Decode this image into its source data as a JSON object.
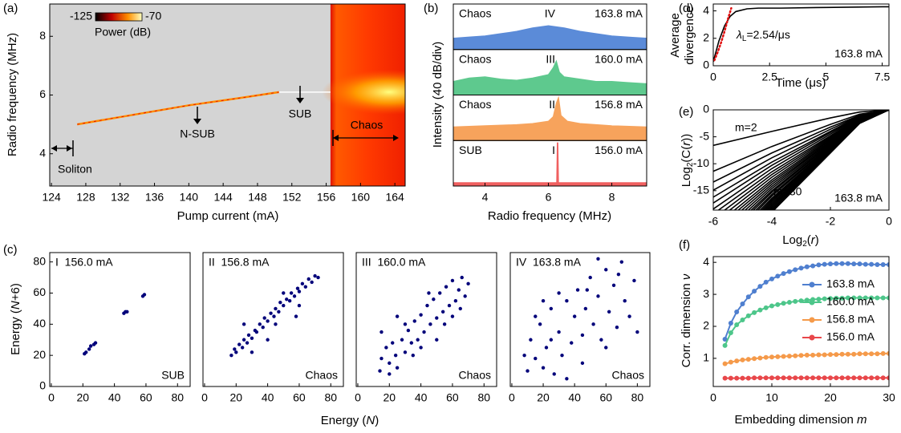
{
  "chart_data": [
    {
      "type": "heatmap",
      "panel": "(a)",
      "xlabel": "Pump current (mA)",
      "ylabel": "Radio frequency (MHz)",
      "xlim": [
        123.8,
        165.2
      ],
      "ylim": [
        2.9,
        9.1
      ],
      "xticks": [
        124,
        128,
        132,
        136,
        140,
        144,
        148,
        152,
        156,
        160,
        164
      ],
      "yticks": [
        4,
        6,
        8
      ],
      "colorbar_ticks": [
        -125,
        -70
      ],
      "colorbar_label": "Power (dB)",
      "annotations": [
        "N-SUB",
        "SUB",
        "Chaos",
        "Soliton"
      ],
      "x": [
        127,
        134,
        140,
        146,
        150.5
      ],
      "values": [
        5.0,
        5.35,
        5.65,
        5.9,
        6.1
      ],
      "color": "#ff8c00",
      "chaos_start": 156.5
    },
    {
      "type": "area",
      "panel": "(b)",
      "xlabel": "Radio frequency (MHz)",
      "ylabel": "Intensity (40 dB/div)",
      "xlim": [
        3,
        9.1
      ],
      "ylim": [
        0,
        40
      ],
      "xticks": [
        4,
        6,
        8
      ],
      "panels": [
        {
          "label": "Chaos",
          "numeral": "IV",
          "current": "163.8 mA",
          "color": "#5b8bd8",
          "x": [
            3,
            3.5,
            4,
            4.5,
            5,
            5.5,
            6,
            6.5,
            7,
            7.5,
            8,
            8.5,
            9.1
          ],
          "values": [
            10,
            11,
            12,
            14,
            16,
            19,
            21,
            19,
            16,
            14,
            12,
            11,
            10
          ]
        },
        {
          "label": "Chaos",
          "numeral": "III",
          "current": "160.0 mA",
          "color": "#5ec98e",
          "x": [
            3,
            3.5,
            4,
            4.5,
            5,
            5.5,
            6,
            6.15,
            6.25,
            6.35,
            6.5,
            7,
            7.5,
            8,
            8.5,
            9.1
          ],
          "values": [
            12,
            15,
            16,
            14,
            13,
            15,
            18,
            24,
            30,
            20,
            16,
            14,
            12,
            12,
            11,
            10
          ]
        },
        {
          "label": "Chaos",
          "numeral": "II",
          "current": "156.8 mA",
          "color": "#f7a35c",
          "x": [
            3,
            4,
            5,
            5.5,
            6,
            6.15,
            6.25,
            6.32,
            6.4,
            6.6,
            7,
            8,
            9.1
          ],
          "values": [
            12,
            13,
            14,
            15,
            17,
            21,
            33,
            38,
            22,
            17,
            15,
            13,
            12
          ]
        },
        {
          "label": "SUB",
          "numeral": "I",
          "current": "156.0 mA",
          "color": "#f06060",
          "x": [
            3,
            4,
            5,
            6,
            6.26,
            6.28,
            6.3,
            6.32,
            7,
            8,
            9.1
          ],
          "values": [
            3,
            3,
            3,
            3,
            3,
            38,
            38,
            3,
            3,
            3,
            3
          ]
        }
      ]
    },
    {
      "type": "scatter",
      "panel": "(c)",
      "xlabel": [
        "Energy (",
        "N",
        ")"
      ],
      "ylabel": [
        "Energy (",
        "N",
        "+6)"
      ],
      "label": "I  156.0 mA",
      "regime": "SUB",
      "color": "#00007a",
      "xlim": [
        -1,
        88
      ],
      "ylim": [
        0,
        86
      ],
      "xticks": [
        0,
        20,
        40,
        60,
        80
      ],
      "yticks": [
        0,
        20,
        40,
        60,
        80
      ],
      "x": [
        21,
        22,
        24,
        25,
        27,
        28,
        46,
        47,
        48,
        58,
        59
      ],
      "values": [
        21,
        22,
        24,
        26,
        27,
        28,
        47,
        48,
        48,
        58,
        59
      ]
    },
    {
      "type": "scatter",
      "label": "II  156.8 mA",
      "regime": "Chaos",
      "color": "#00007a",
      "xlim": [
        -1,
        88
      ],
      "ylim": [
        0,
        86
      ],
      "xticks": [
        0,
        20,
        40,
        60,
        80
      ],
      "x": [
        17,
        19,
        20,
        22,
        24,
        25,
        27,
        28,
        30,
        32,
        33,
        35,
        37,
        38,
        40,
        42,
        44,
        45,
        47,
        48,
        50,
        52,
        54,
        55,
        57,
        59,
        60,
        62,
        64,
        66,
        68,
        70,
        72,
        30,
        45,
        50,
        60,
        25,
        40,
        58
      ],
      "values": [
        20,
        24,
        22,
        27,
        25,
        30,
        28,
        33,
        31,
        36,
        35,
        40,
        38,
        44,
        42,
        47,
        45,
        50,
        48,
        54,
        52,
        56,
        55,
        60,
        58,
        63,
        61,
        66,
        64,
        69,
        67,
        71,
        70,
        22,
        40,
        60,
        52,
        40,
        30,
        45
      ]
    },
    {
      "type": "scatter",
      "label": "III  160.0 mA",
      "regime": "Chaos",
      "color": "#00007a",
      "xlim": [
        -1,
        88
      ],
      "ylim": [
        0,
        86
      ],
      "xticks": [
        0,
        20,
        40,
        60,
        80
      ],
      "x": [
        14,
        15,
        18,
        20,
        22,
        24,
        25,
        28,
        30,
        32,
        34,
        36,
        38,
        40,
        42,
        44,
        46,
        48,
        50,
        52,
        54,
        56,
        58,
        60,
        62,
        64,
        66,
        68,
        70,
        15,
        25,
        35,
        45,
        55,
        65,
        20,
        30,
        50,
        60,
        40
      ],
      "values": [
        10,
        18,
        25,
        15,
        28,
        20,
        12,
        30,
        22,
        36,
        28,
        42,
        30,
        46,
        35,
        52,
        40,
        56,
        44,
        60,
        48,
        64,
        52,
        68,
        55,
        62,
        70,
        58,
        66,
        35,
        45,
        20,
        60,
        40,
        50,
        8,
        40,
        30,
        45,
        25
      ]
    },
    {
      "type": "scatter",
      "label": "IV  163.8 mA",
      "regime": "Chaos",
      "color": "#00007a",
      "xlim": [
        -1,
        88
      ],
      "ylim": [
        0,
        86
      ],
      "xticks": [
        0,
        20,
        40,
        60,
        80
      ],
      "x": [
        8,
        10,
        12,
        15,
        18,
        20,
        22,
        25,
        27,
        30,
        32,
        35,
        38,
        40,
        42,
        45,
        47,
        50,
        52,
        55,
        57,
        60,
        62,
        65,
        67,
        70,
        72,
        75,
        78,
        80,
        30,
        20,
        45,
        60,
        68,
        35,
        55,
        15,
        48,
        25
      ],
      "values": [
        20,
        10,
        30,
        18,
        40,
        12,
        25,
        50,
        8,
        35,
        20,
        55,
        28,
        45,
        62,
        33,
        50,
        70,
        40,
        58,
        30,
        75,
        48,
        65,
        38,
        80,
        55,
        45,
        68,
        35,
        60,
        55,
        15,
        25,
        72,
        5,
        82,
        45,
        62,
        30
      ]
    },
    {
      "type": "line",
      "panel": "(d)",
      "xlabel": "Time (μs)",
      "ylabel": [
        "Average",
        "divergence"
      ],
      "annotation": [
        "λ",
        "L",
        "=2.54/μs"
      ],
      "current": "163.8 mA",
      "xlim": [
        0,
        7.8
      ],
      "ylim": [
        0,
        4.5
      ],
      "xticks": [
        0,
        2.5,
        5,
        7.5
      ],
      "yticks": [
        0,
        2,
        4
      ],
      "series": [
        {
          "color": "#000000",
          "x": [
            0,
            0.25,
            0.5,
            0.75,
            1,
            1.5,
            2,
            3,
            5,
            7.5,
            7.8
          ],
          "values": [
            0.3,
            1.8,
            2.9,
            3.6,
            3.95,
            4.15,
            4.2,
            4.2,
            4.25,
            4.3,
            4.3
          ]
        },
        {
          "color": "#e01010",
          "dotted": true,
          "x": [
            0.05,
            0.2,
            0.35,
            0.5,
            0.65,
            0.8
          ],
          "values": [
            0.4,
            1.0,
            1.7,
            2.5,
            3.4,
            4.2
          ]
        }
      ]
    },
    {
      "type": "line",
      "panel": "(e)",
      "xlabel": [
        "Log",
        "2",
        "(",
        "r",
        ")"
      ],
      "ylabel": [
        "Log",
        "2",
        "(C(",
        "r",
        "))"
      ],
      "annotations": [
        "m=2",
        "m=30"
      ],
      "current": "163.8 mA",
      "color": "#000000",
      "xlim": [
        -6,
        0
      ],
      "ylim": [
        -18.6,
        0
      ],
      "xticks": [
        -6,
        -4,
        -2,
        0
      ],
      "yticks": [
        0,
        -5,
        -10,
        -15
      ],
      "x": [
        -6,
        -4,
        -2,
        -1,
        0
      ],
      "series": [
        {
          "values": [
            -6.6,
            -4,
            -1.5,
            -0.4,
            0
          ]
        },
        {
          "values": [
            -11.4,
            -6.8,
            -2.7,
            -0.8,
            0
          ]
        },
        {
          "values": [
            -13.4,
            -8.0,
            -3.2,
            -1.0,
            0
          ]
        },
        {
          "values": [
            -14.9,
            -8.9,
            -3.6,
            -1.1,
            0
          ]
        },
        {
          "values": [
            -16.2,
            -9.7,
            -4.0,
            -1.2,
            0
          ]
        },
        {
          "values": [
            -17.3,
            -10.3,
            -4.2,
            -1.3,
            0
          ]
        },
        {
          "values": [
            -18.4,
            -10.9,
            -4.5,
            -1.4,
            0
          ]
        },
        {
          "values": [
            -19.3,
            -11.5,
            -4.8,
            -1.5,
            0
          ]
        },
        {
          "values": [
            -20.2,
            -12.0,
            -5.0,
            -1.5,
            0
          ]
        },
        {
          "values": [
            -21.0,
            -12.5,
            -5.2,
            -1.6,
            0
          ]
        },
        {
          "values": [
            -21.8,
            -13.0,
            -5.4,
            -1.7,
            0
          ]
        },
        {
          "values": [
            -22.5,
            -13.4,
            -5.6,
            -1.7,
            0
          ]
        },
        {
          "values": [
            -23.2,
            -13.8,
            -5.8,
            -1.8,
            0
          ]
        },
        {
          "values": [
            -23.9,
            -14.2,
            -5.9,
            -1.8,
            0
          ]
        },
        {
          "values": [
            -24.6,
            -14.6,
            -6.1,
            -1.9,
            0
          ]
        },
        {
          "values": [
            -25.2,
            -15.0,
            -6.3,
            -1.9,
            0
          ]
        },
        {
          "values": [
            -25.8,
            -15.3,
            -6.4,
            -2.0,
            0
          ]
        },
        {
          "values": [
            -26.4,
            -15.7,
            -6.6,
            -2.0,
            0
          ]
        },
        {
          "values": [
            -27.0,
            -16.0,
            -6.7,
            -2.1,
            0
          ]
        },
        {
          "values": [
            -27.5,
            -16.4,
            -6.9,
            -2.1,
            0
          ]
        },
        {
          "values": [
            -28.1,
            -16.7,
            -7.0,
            -2.2,
            0
          ]
        },
        {
          "values": [
            -28.6,
            -17.0,
            -7.1,
            -2.2,
            0
          ]
        },
        {
          "values": [
            -29.1,
            -17.3,
            -7.3,
            -2.3,
            0
          ]
        },
        {
          "values": [
            -29.6,
            -17.6,
            -7.4,
            -2.3,
            0
          ]
        },
        {
          "values": [
            -30.1,
            -17.9,
            -7.5,
            -2.3,
            0
          ]
        },
        {
          "values": [
            -30.6,
            -18.2,
            -7.6,
            -2.4,
            0
          ]
        },
        {
          "values": [
            -31.1,
            -18.5,
            -7.8,
            -2.4,
            0
          ]
        },
        {
          "values": [
            -31.5,
            -18.7,
            -7.9,
            -2.5,
            0
          ]
        },
        {
          "values": [
            -32,
            -19,
            -8,
            -2.5,
            0
          ]
        }
      ]
    },
    {
      "type": "line",
      "panel": "(f)",
      "xlabel": [
        "Embedding dimension ",
        "m"
      ],
      "ylabel": [
        "Corr. dimension ",
        "ν"
      ],
      "xlim": [
        0,
        30
      ],
      "ylim": [
        0.12,
        4.18
      ],
      "xticks": [
        0,
        10,
        20,
        30
      ],
      "yticks": [
        1,
        2,
        3,
        4
      ],
      "markers": true,
      "legend": "right",
      "x": [
        2,
        3,
        4,
        5,
        6,
        7,
        8,
        9,
        10,
        11,
        12,
        13,
        14,
        15,
        16,
        17,
        18,
        19,
        20,
        21,
        22,
        23,
        24,
        25,
        26,
        27,
        28,
        29,
        30
      ],
      "series": [
        {
          "name": "163.8 mA",
          "color": "#4f7fcf",
          "values": [
            1.6,
            2.1,
            2.45,
            2.7,
            2.92,
            3.1,
            3.25,
            3.38,
            3.48,
            3.57,
            3.65,
            3.71,
            3.77,
            3.82,
            3.86,
            3.89,
            3.92,
            3.94,
            3.95,
            3.96,
            3.96,
            3.96,
            3.95,
            3.95,
            3.94,
            3.94,
            3.93,
            3.93,
            3.93
          ]
        },
        {
          "name": "160.0 mA",
          "color": "#4dc68a",
          "values": [
            1.4,
            1.8,
            2.05,
            2.2,
            2.33,
            2.43,
            2.51,
            2.58,
            2.64,
            2.68,
            2.72,
            2.75,
            2.78,
            2.8,
            2.82,
            2.84,
            2.85,
            2.86,
            2.87,
            2.88,
            2.88,
            2.89,
            2.89,
            2.89,
            2.89,
            2.89,
            2.89,
            2.89,
            2.89
          ]
        },
        {
          "name": "156.8 mA",
          "color": "#f59a4a",
          "values": [
            0.83,
            0.88,
            0.92,
            0.95,
            0.97,
            0.99,
            1.01,
            1.03,
            1.04,
            1.05,
            1.06,
            1.07,
            1.08,
            1.09,
            1.1,
            1.1,
            1.11,
            1.11,
            1.12,
            1.12,
            1.13,
            1.13,
            1.13,
            1.14,
            1.14,
            1.14,
            1.14,
            1.15,
            1.15
          ]
        },
        {
          "name": "156.0 mA",
          "color": "#e8474a",
          "values": [
            0.38,
            0.38,
            0.38,
            0.38,
            0.38,
            0.39,
            0.39,
            0.39,
            0.39,
            0.39,
            0.39,
            0.39,
            0.39,
            0.39,
            0.39,
            0.39,
            0.39,
            0.39,
            0.39,
            0.39,
            0.39,
            0.39,
            0.39,
            0.39,
            0.39,
            0.39,
            0.39,
            0.39,
            0.39
          ]
        }
      ]
    }
  ]
}
